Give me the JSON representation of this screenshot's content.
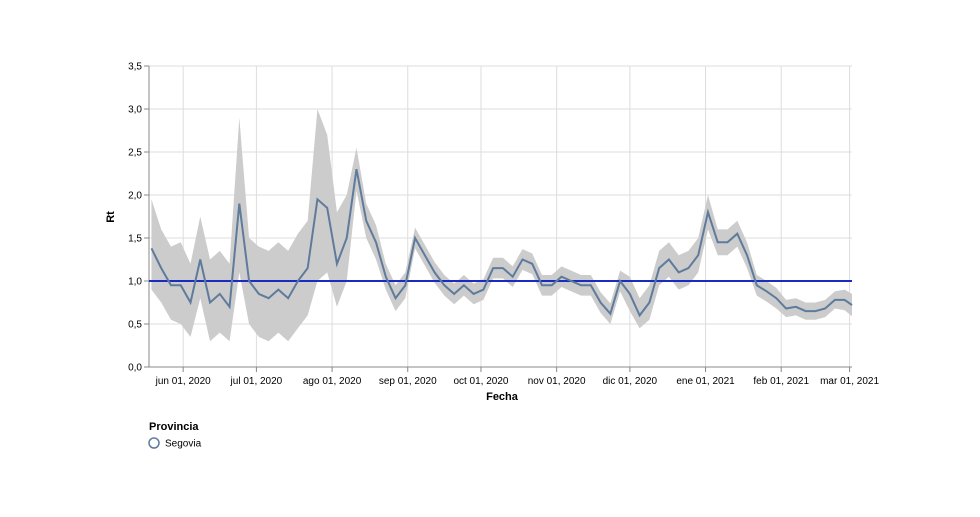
{
  "chart_data": {
    "type": "line",
    "x_label": "Fecha",
    "y_label": "Rt",
    "legend_title": "Provincia",
    "legend_position": "bottom-left",
    "x": [
      "2020-05-19",
      "2020-05-23",
      "2020-05-27",
      "2020-05-31",
      "2020-06-04",
      "2020-06-08",
      "2020-06-12",
      "2020-06-16",
      "2020-06-20",
      "2020-06-24",
      "2020-06-28",
      "2020-07-02",
      "2020-07-06",
      "2020-07-10",
      "2020-07-14",
      "2020-07-18",
      "2020-07-22",
      "2020-07-26",
      "2020-07-30",
      "2020-08-03",
      "2020-08-07",
      "2020-08-11",
      "2020-08-15",
      "2020-08-19",
      "2020-08-23",
      "2020-08-27",
      "2020-08-31",
      "2020-09-04",
      "2020-09-08",
      "2020-09-12",
      "2020-09-16",
      "2020-09-20",
      "2020-09-24",
      "2020-09-28",
      "2020-10-02",
      "2020-10-06",
      "2020-10-10",
      "2020-10-14",
      "2020-10-18",
      "2020-10-22",
      "2020-10-26",
      "2020-10-30",
      "2020-11-03",
      "2020-11-07",
      "2020-11-11",
      "2020-11-15",
      "2020-11-19",
      "2020-11-23",
      "2020-11-27",
      "2020-12-01",
      "2020-12-05",
      "2020-12-09",
      "2020-12-13",
      "2020-12-17",
      "2020-12-21",
      "2020-12-25",
      "2020-12-29",
      "2021-01-02",
      "2021-01-06",
      "2021-01-10",
      "2021-01-14",
      "2021-01-18",
      "2021-01-22",
      "2021-01-26",
      "2021-01-30",
      "2021-02-03",
      "2021-02-07",
      "2021-02-11",
      "2021-02-15",
      "2021-02-19",
      "2021-02-23",
      "2021-02-27",
      "2021-03-02"
    ],
    "series": [
      {
        "name": "Segovia",
        "color": "#5f7b9c",
        "band_color": "#cccccc",
        "values": [
          1.38,
          1.15,
          0.95,
          0.95,
          0.75,
          1.25,
          0.75,
          0.85,
          0.7,
          1.9,
          1.0,
          0.85,
          0.8,
          0.9,
          0.8,
          1.0,
          1.15,
          1.95,
          1.85,
          1.2,
          1.5,
          2.3,
          1.7,
          1.45,
          1.05,
          0.8,
          0.95,
          1.5,
          1.3,
          1.1,
          0.95,
          0.85,
          0.95,
          0.85,
          0.9,
          1.15,
          1.15,
          1.05,
          1.25,
          1.2,
          0.95,
          0.95,
          1.05,
          1.0,
          0.95,
          0.95,
          0.75,
          0.62,
          1.0,
          0.85,
          0.6,
          0.75,
          1.15,
          1.25,
          1.1,
          1.15,
          1.3,
          1.8,
          1.45,
          1.45,
          1.55,
          1.3,
          0.95,
          0.88,
          0.8,
          0.68,
          0.7,
          0.65,
          0.65,
          0.68,
          0.78,
          0.78,
          0.72
        ],
        "upper": [
          1.95,
          1.6,
          1.4,
          1.45,
          1.2,
          1.75,
          1.25,
          1.35,
          1.2,
          2.9,
          1.5,
          1.4,
          1.35,
          1.45,
          1.35,
          1.55,
          1.7,
          3.0,
          2.7,
          1.8,
          2.0,
          2.55,
          1.9,
          1.65,
          1.2,
          0.95,
          1.1,
          1.62,
          1.42,
          1.22,
          1.07,
          0.97,
          1.07,
          0.97,
          1.02,
          1.27,
          1.27,
          1.17,
          1.37,
          1.32,
          1.07,
          1.07,
          1.17,
          1.12,
          1.07,
          1.07,
          0.87,
          0.74,
          1.12,
          1.05,
          0.8,
          0.95,
          1.35,
          1.45,
          1.3,
          1.35,
          1.5,
          2.0,
          1.6,
          1.6,
          1.7,
          1.45,
          1.07,
          1.0,
          0.92,
          0.78,
          0.8,
          0.75,
          0.75,
          0.78,
          0.88,
          0.9,
          0.85
        ],
        "lower": [
          0.9,
          0.75,
          0.55,
          0.5,
          0.35,
          0.8,
          0.3,
          0.4,
          0.3,
          1.1,
          0.5,
          0.35,
          0.3,
          0.4,
          0.3,
          0.45,
          0.6,
          1.0,
          1.1,
          0.7,
          1.0,
          2.05,
          1.5,
          1.25,
          0.9,
          0.65,
          0.8,
          1.38,
          1.18,
          0.98,
          0.83,
          0.73,
          0.83,
          0.73,
          0.78,
          1.03,
          1.03,
          0.93,
          1.13,
          1.08,
          0.83,
          0.83,
          0.93,
          0.88,
          0.83,
          0.83,
          0.63,
          0.5,
          0.88,
          0.65,
          0.45,
          0.55,
          0.95,
          1.05,
          0.9,
          0.95,
          1.1,
          1.6,
          1.3,
          1.3,
          1.4,
          1.15,
          0.83,
          0.76,
          0.68,
          0.58,
          0.6,
          0.55,
          0.55,
          0.58,
          0.68,
          0.66,
          0.59
        ]
      }
    ],
    "reference_line": {
      "value": 1,
      "color": "#1a2bbf"
    },
    "xlim": [
      "2020-05-18",
      "2021-03-02"
    ],
    "xticks": [
      {
        "value": "2020-06-01",
        "label": "jun 01, 2020"
      },
      {
        "value": "2020-07-01",
        "label": "jul 01, 2020"
      },
      {
        "value": "2020-08-01",
        "label": "ago 01, 2020"
      },
      {
        "value": "2020-09-01",
        "label": "sep 01, 2020"
      },
      {
        "value": "2020-10-01",
        "label": "oct 01, 2020"
      },
      {
        "value": "2020-11-01",
        "label": "nov 01, 2020"
      },
      {
        "value": "2020-12-01",
        "label": "dic 01, 2020"
      },
      {
        "value": "2021-01-01",
        "label": "ene 01, 2021"
      },
      {
        "value": "2021-02-01",
        "label": "feb 01, 2021"
      },
      {
        "value": "2021-03-01",
        "label": "mar 01, 2021"
      }
    ],
    "ylim": [
      0,
      3.5
    ],
    "yticks": [
      {
        "value": 0,
        "label": "0,0"
      },
      {
        "value": 0.5,
        "label": "0,5"
      },
      {
        "value": 1,
        "label": "1,0"
      },
      {
        "value": 1.5,
        "label": "1,5"
      },
      {
        "value": 2,
        "label": "2,0"
      },
      {
        "value": 2.5,
        "label": "2,5"
      },
      {
        "value": 3,
        "label": "3,0"
      },
      {
        "value": 3.5,
        "label": "3,5"
      }
    ],
    "grid": true
  }
}
